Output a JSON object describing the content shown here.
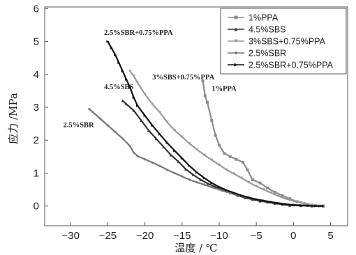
{
  "chart_data": {
    "type": "scatter",
    "xlabel": "温度 / ℃",
    "ylabel": "应力 /MPa",
    "xlim": [
      -33.5,
      7.3
    ],
    "ylim": [
      -0.6,
      6.05
    ],
    "xticks": [
      -30,
      -25,
      -20,
      -15,
      -10,
      -5,
      0,
      5
    ],
    "yticks": [
      0,
      1,
      2,
      3,
      4,
      5,
      6
    ],
    "grid": false,
    "legend_position": "top-right",
    "series": [
      {
        "name": "1%PPA",
        "color": "#8c8c8c",
        "marker": "square",
        "points": [
          [
            -12.2,
            3.8
          ],
          [
            -11.9,
            3.35
          ],
          [
            -11.6,
            3.15
          ],
          [
            -11.0,
            2.6
          ],
          [
            -10.5,
            2.15
          ],
          [
            -10.0,
            1.85
          ],
          [
            -9.3,
            1.6
          ],
          [
            -8.5,
            1.5
          ],
          [
            -7.7,
            1.42
          ],
          [
            -6.8,
            1.33
          ],
          [
            -6.2,
            1.1
          ],
          [
            -5.5,
            0.8
          ],
          [
            -4.5,
            0.7
          ],
          [
            -3.5,
            0.55
          ],
          [
            -2.5,
            0.42
          ],
          [
            -1.5,
            0.32
          ],
          [
            -0.5,
            0.22
          ],
          [
            0.5,
            0.13
          ],
          [
            1.5,
            0.07
          ],
          [
            2.5,
            0.03
          ],
          [
            3.5,
            0.0
          ],
          [
            4.0,
            0.0
          ]
        ]
      },
      {
        "name": "4.5%SBS",
        "color": "#333333",
        "marker": "triangle",
        "points": [
          [
            -23.0,
            3.2
          ],
          [
            -22.5,
            3.1
          ],
          [
            -21.5,
            2.9
          ],
          [
            -20.5,
            2.6
          ],
          [
            -19.5,
            2.3
          ],
          [
            -18.5,
            2.05
          ],
          [
            -17.5,
            1.8
          ],
          [
            -16.5,
            1.55
          ],
          [
            -15.5,
            1.35
          ],
          [
            -14.5,
            1.12
          ],
          [
            -13.5,
            0.95
          ],
          [
            -12.5,
            0.8
          ],
          [
            -11.5,
            0.68
          ],
          [
            -10.5,
            0.58
          ],
          [
            -9.5,
            0.48
          ],
          [
            -8.5,
            0.4
          ],
          [
            -7.5,
            0.32
          ],
          [
            -6.5,
            0.25
          ],
          [
            -5.5,
            0.2
          ],
          [
            -4.5,
            0.15
          ],
          [
            -3.5,
            0.12
          ],
          [
            -2.5,
            0.08
          ],
          [
            -1.5,
            0.05
          ],
          [
            -0.5,
            0.02
          ],
          [
            1.0,
            0.01
          ],
          [
            2.5,
            0.0
          ],
          [
            4.0,
            0.0
          ]
        ]
      },
      {
        "name": "3%SBS+0.75%PPA",
        "color": "#999999",
        "marker": "triangle-down",
        "points": [
          [
            -22.0,
            4.1
          ],
          [
            -21.5,
            3.95
          ],
          [
            -21.0,
            3.75
          ],
          [
            -20.0,
            3.4
          ],
          [
            -19.0,
            3.1
          ],
          [
            -18.0,
            2.85
          ],
          [
            -17.0,
            2.55
          ],
          [
            -16.0,
            2.3
          ],
          [
            -15.0,
            2.1
          ],
          [
            -14.0,
            1.9
          ],
          [
            -13.0,
            1.72
          ],
          [
            -12.0,
            1.55
          ],
          [
            -11.0,
            1.4
          ],
          [
            -10.0,
            1.25
          ],
          [
            -9.0,
            1.1
          ],
          [
            -8.0,
            0.98
          ],
          [
            -7.0,
            0.85
          ],
          [
            -6.0,
            0.72
          ],
          [
            -5.0,
            0.6
          ],
          [
            -4.0,
            0.5
          ],
          [
            -3.0,
            0.4
          ],
          [
            -2.0,
            0.3
          ],
          [
            -1.0,
            0.22
          ],
          [
            0.0,
            0.15
          ],
          [
            1.0,
            0.1
          ],
          [
            2.0,
            0.05
          ],
          [
            3.0,
            0.02
          ],
          [
            4.0,
            0.0
          ]
        ]
      },
      {
        "name": "2.5%SBR",
        "color": "#777777",
        "marker": "diamond",
        "points": [
          [
            -27.5,
            2.95
          ],
          [
            -27.0,
            2.85
          ],
          [
            -26.0,
            2.65
          ],
          [
            -25.0,
            2.45
          ],
          [
            -24.0,
            2.25
          ],
          [
            -23.0,
            2.05
          ],
          [
            -22.0,
            1.82
          ],
          [
            -21.5,
            1.62
          ],
          [
            -21.0,
            1.52
          ],
          [
            -20.0,
            1.42
          ],
          [
            -19.0,
            1.32
          ],
          [
            -18.0,
            1.22
          ],
          [
            -17.0,
            1.1
          ],
          [
            -16.0,
            1.0
          ],
          [
            -15.0,
            0.9
          ],
          [
            -14.0,
            0.8
          ],
          [
            -13.0,
            0.72
          ],
          [
            -12.0,
            0.65
          ],
          [
            -11.0,
            0.57
          ],
          [
            -10.0,
            0.5
          ],
          [
            -9.0,
            0.43
          ],
          [
            -8.0,
            0.37
          ],
          [
            -7.0,
            0.3
          ],
          [
            -6.0,
            0.25
          ],
          [
            -5.0,
            0.2
          ],
          [
            -4.0,
            0.16
          ],
          [
            -3.0,
            0.12
          ],
          [
            -2.0,
            0.09
          ],
          [
            -1.0,
            0.06
          ],
          [
            0.0,
            0.04
          ],
          [
            1.0,
            0.02
          ],
          [
            2.0,
            0.01
          ],
          [
            3.0,
            0.0
          ],
          [
            4.0,
            0.0
          ]
        ]
      },
      {
        "name": "2.5%SBR+0.75%PPA",
        "color": "#111111",
        "marker": "triangle-right",
        "points": [
          [
            -25.0,
            5.0
          ],
          [
            -24.5,
            4.8
          ],
          [
            -24.0,
            4.6
          ],
          [
            -23.5,
            4.35
          ],
          [
            -23.0,
            4.1
          ],
          [
            -22.5,
            3.85
          ],
          [
            -22.0,
            3.6
          ],
          [
            -21.5,
            3.3
          ],
          [
            -21.0,
            3.05
          ],
          [
            -20.0,
            2.75
          ],
          [
            -19.0,
            2.45
          ],
          [
            -18.0,
            2.18
          ],
          [
            -17.0,
            1.92
          ],
          [
            -16.0,
            1.68
          ],
          [
            -15.0,
            1.45
          ],
          [
            -14.0,
            1.22
          ],
          [
            -13.0,
            1.02
          ],
          [
            -12.0,
            0.85
          ],
          [
            -11.0,
            0.7
          ],
          [
            -10.0,
            0.58
          ],
          [
            -9.0,
            0.48
          ],
          [
            -8.0,
            0.4
          ],
          [
            -7.0,
            0.32
          ],
          [
            -6.0,
            0.26
          ],
          [
            -5.0,
            0.2
          ],
          [
            -4.0,
            0.16
          ],
          [
            -3.0,
            0.12
          ],
          [
            -2.0,
            0.08
          ],
          [
            -1.0,
            0.05
          ],
          [
            0.0,
            0.03
          ],
          [
            1.0,
            0.02
          ],
          [
            2.0,
            0.01
          ],
          [
            3.0,
            0.0
          ],
          [
            4.0,
            0.0
          ]
        ]
      }
    ],
    "annotations": [
      {
        "text": "2.5%SBR+0.75%PPA",
        "x": -25.5,
        "y": 5.2
      },
      {
        "text": "4.5%SBS",
        "x": -25.5,
        "y": 3.55
      },
      {
        "text": "3%SBS+0.75%PPA",
        "x": -19.0,
        "y": 3.85
      },
      {
        "text": "1%PPA",
        "x": -11.0,
        "y": 3.5
      },
      {
        "text": "2.5%SBR",
        "x": -31.0,
        "y": 2.4
      }
    ]
  }
}
